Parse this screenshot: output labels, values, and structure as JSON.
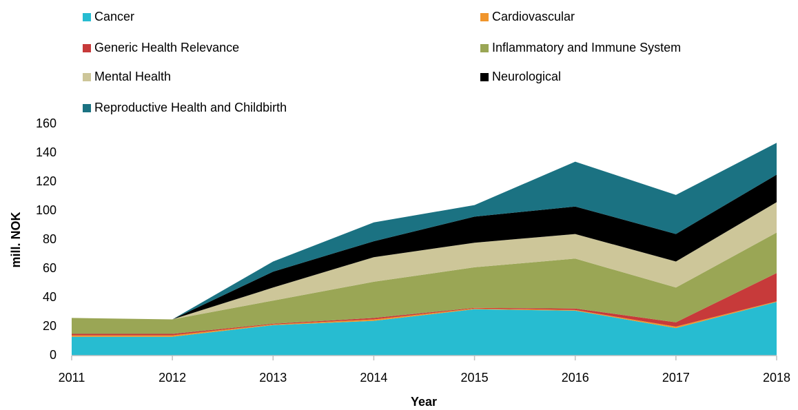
{
  "chart_data": {
    "type": "stacked-area",
    "x": [
      2011,
      2012,
      2013,
      2014,
      2015,
      2016,
      2017,
      2018
    ],
    "xlim": [
      2011,
      2018
    ],
    "xticks": [
      2011,
      2012,
      2013,
      2014,
      2015,
      2016,
      2017,
      2018
    ],
    "ylim": [
      0,
      160
    ],
    "yticks": [
      0,
      20,
      40,
      60,
      80,
      100,
      120,
      140,
      160
    ],
    "xlabel": "Year",
    "ylabel": "mill. NOK",
    "grid": false,
    "legend": "top",
    "series": [
      {
        "name": "Cancer",
        "color": "#27bcd1",
        "values": [
          13,
          13,
          21,
          24,
          32,
          31,
          19,
          37
        ]
      },
      {
        "name": "Cardiovascular",
        "color": "#f0952c",
        "values": [
          1,
          1,
          0.5,
          1,
          0.5,
          0.5,
          1,
          0.5
        ]
      },
      {
        "name": "Generic Health Relevance",
        "color": "#c73a3a",
        "values": [
          1,
          1,
          0.5,
          1,
          0.5,
          1,
          3,
          19.5
        ]
      },
      {
        "name": "Inflammatory and Immune System",
        "color": "#9aa655",
        "values": [
          11,
          10,
          16,
          25,
          28,
          34.5,
          24,
          28
        ]
      },
      {
        "name": "Mental Health",
        "color": "#cdc699",
        "values": [
          0,
          0,
          9,
          17,
          17,
          17,
          18,
          21
        ]
      },
      {
        "name": "Neurological",
        "color": "#000000",
        "values": [
          0,
          0,
          11,
          11,
          18,
          19,
          19,
          19
        ]
      },
      {
        "name": "Reproductive Health and Childbirth",
        "color": "#1b7282",
        "values": [
          0,
          0,
          7,
          13,
          8,
          31,
          27,
          22
        ]
      }
    ]
  }
}
